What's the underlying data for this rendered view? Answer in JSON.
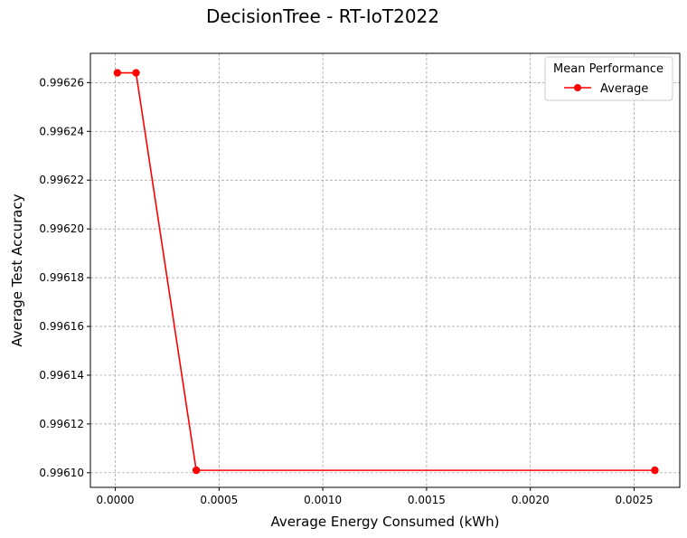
{
  "chart_data": {
    "type": "line",
    "title": "DecisionTree - RT-IoT2022",
    "xlabel": "Average Energy Consumed (kWh)",
    "ylabel": "Average Test Accuracy",
    "xlim": [
      -0.00012,
      0.00272
    ],
    "ylim": [
      0.996094,
      0.996272
    ],
    "xticks": [
      0.0,
      0.0005,
      0.001,
      0.0015,
      0.002,
      0.0025
    ],
    "xtick_labels": [
      "0.0000",
      "0.0005",
      "0.0010",
      "0.0015",
      "0.0020",
      "0.0025"
    ],
    "yticks": [
      0.9961,
      0.99612,
      0.99614,
      0.99616,
      0.99618,
      0.9962,
      0.99622,
      0.99624,
      0.99626
    ],
    "ytick_labels": [
      "0.99610",
      "0.99612",
      "0.99614",
      "0.99616",
      "0.99618",
      "0.99620",
      "0.99622",
      "0.99624",
      "0.99626"
    ],
    "grid": true,
    "legend": {
      "title": "Mean Performance",
      "position": "top-right"
    },
    "series": [
      {
        "name": "Average",
        "color": "#ff0000",
        "marker": "circle",
        "x": [
          1e-05,
          0.0001,
          0.00039,
          0.0026
        ],
        "y": [
          0.996264,
          0.996264,
          0.996101,
          0.996101
        ]
      }
    ]
  }
}
